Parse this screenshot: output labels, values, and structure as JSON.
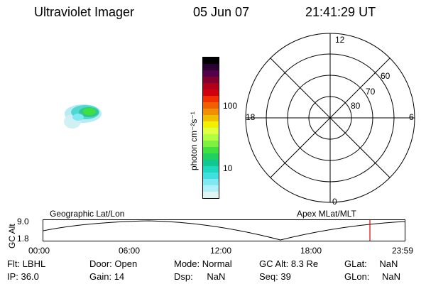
{
  "header": {
    "instrument": "Ultraviolet Imager",
    "date": "05 Jun 07",
    "time": "21:41:29 UT"
  },
  "colorbar": {
    "unit_label": "photon cm⁻²s⁻¹",
    "ticks": [
      "100",
      "10"
    ],
    "colors": [
      "#000000",
      "#2a0033",
      "#55004a",
      "#800030",
      "#b0001a",
      "#d00010",
      "#f03000",
      "#f06000",
      "#f09000",
      "#f0c000",
      "#f0f000",
      "#e0ff40",
      "#b0ff40",
      "#80f040",
      "#40e040",
      "#20d060",
      "#10c890",
      "#20d8c0",
      "#40e0e0",
      "#80e8f0",
      "#b0f0f8",
      "#e0f4f4"
    ]
  },
  "polar": {
    "mlt_labels": {
      "top": "12",
      "left": "18",
      "right": "6",
      "bottom": "0"
    },
    "lat_labels": [
      "60",
      "70",
      "80"
    ]
  },
  "altitude_panel": {
    "left_title": "Geographic Lat/Lon",
    "right_title": "Apex MLat/MLT",
    "y_axis_label": "GC Alt",
    "y_ticks": [
      "9.0",
      "1.8"
    ],
    "x_ticks": [
      "00:00",
      "06:00",
      "12:00",
      "18:00",
      "23:59"
    ],
    "current_time_marker_hour": 21.69
  },
  "info": {
    "filter": {
      "label": "Flt:",
      "value": "LBHL"
    },
    "ip": {
      "label": "IP:",
      "value": "36.0"
    },
    "door": {
      "label": "Door:",
      "value": "Open"
    },
    "gain": {
      "label": "Gain:",
      "value": "14"
    },
    "mode": {
      "label": "Mode:",
      "value": "Normal"
    },
    "dsp": {
      "label": "Dsp:",
      "value": "NaN"
    },
    "gc_alt": {
      "label": "GC Alt:",
      "value": "8.3 Re"
    },
    "seq": {
      "label": "Seq:",
      "value": "39"
    },
    "glat": {
      "label": "GLat:",
      "value": "NaN"
    },
    "glon": {
      "label": "GLon:",
      "value": "NaN"
    }
  },
  "colors": {
    "marker": "#e00000",
    "line": "#000000"
  }
}
